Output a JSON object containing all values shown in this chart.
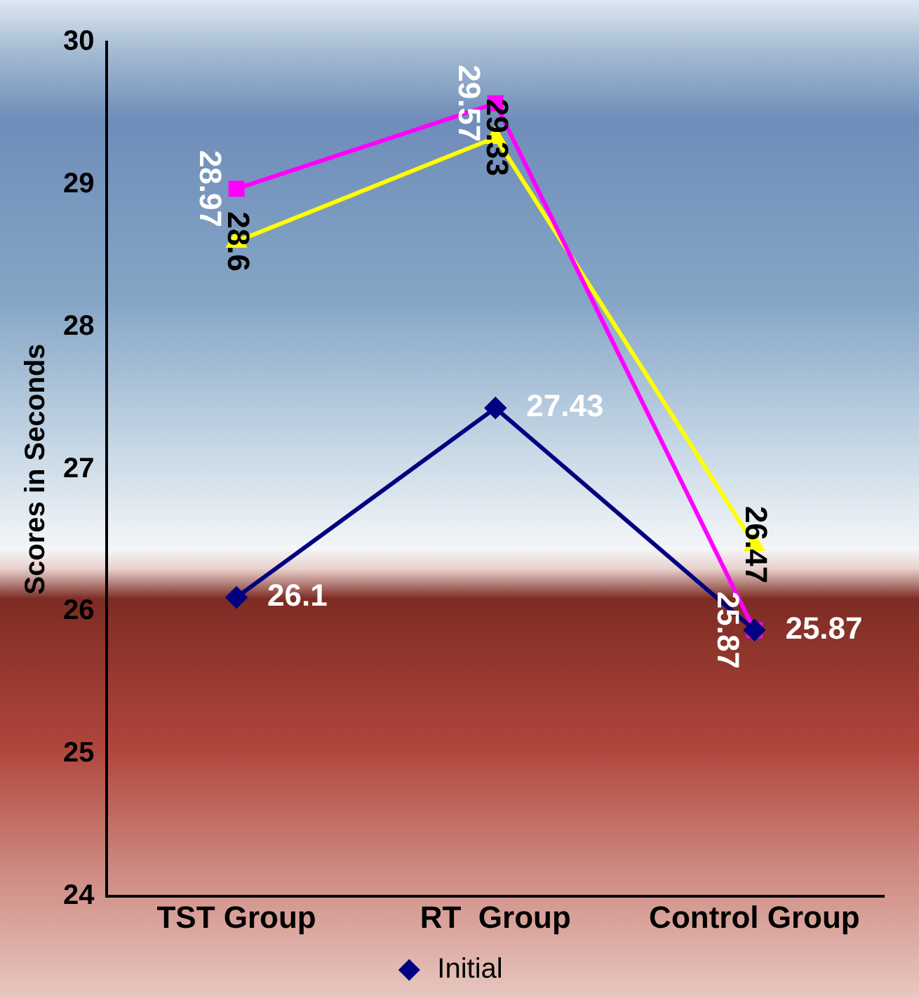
{
  "chart_data": {
    "type": "line",
    "ylabel": "Scores in Seconds",
    "categories": [
      "TST Group",
      "RT  Group",
      "Control Group"
    ],
    "ylim": [
      24,
      30
    ],
    "yticks": [
      24,
      25,
      26,
      27,
      28,
      29,
      30
    ],
    "grid": false,
    "legend": "bottom",
    "series": [
      {
        "name": "Initial",
        "color": "#000080",
        "marker": "diamond",
        "values": [
          26.1,
          27.43,
          25.87
        ],
        "value_labels": [
          "26.1",
          "27.43",
          "25.87"
        ]
      },
      {
        "color": "#ff00ff",
        "marker": "square",
        "values": [
          28.97,
          29.57,
          25.87
        ],
        "value_labels": [
          "28.97",
          "29.57",
          "25.87"
        ]
      },
      {
        "color": "#ffff00",
        "marker": "triangle",
        "values": [
          28.6,
          29.33,
          26.47
        ],
        "value_labels": [
          "28.6",
          "29.33",
          "26.47"
        ]
      }
    ]
  }
}
